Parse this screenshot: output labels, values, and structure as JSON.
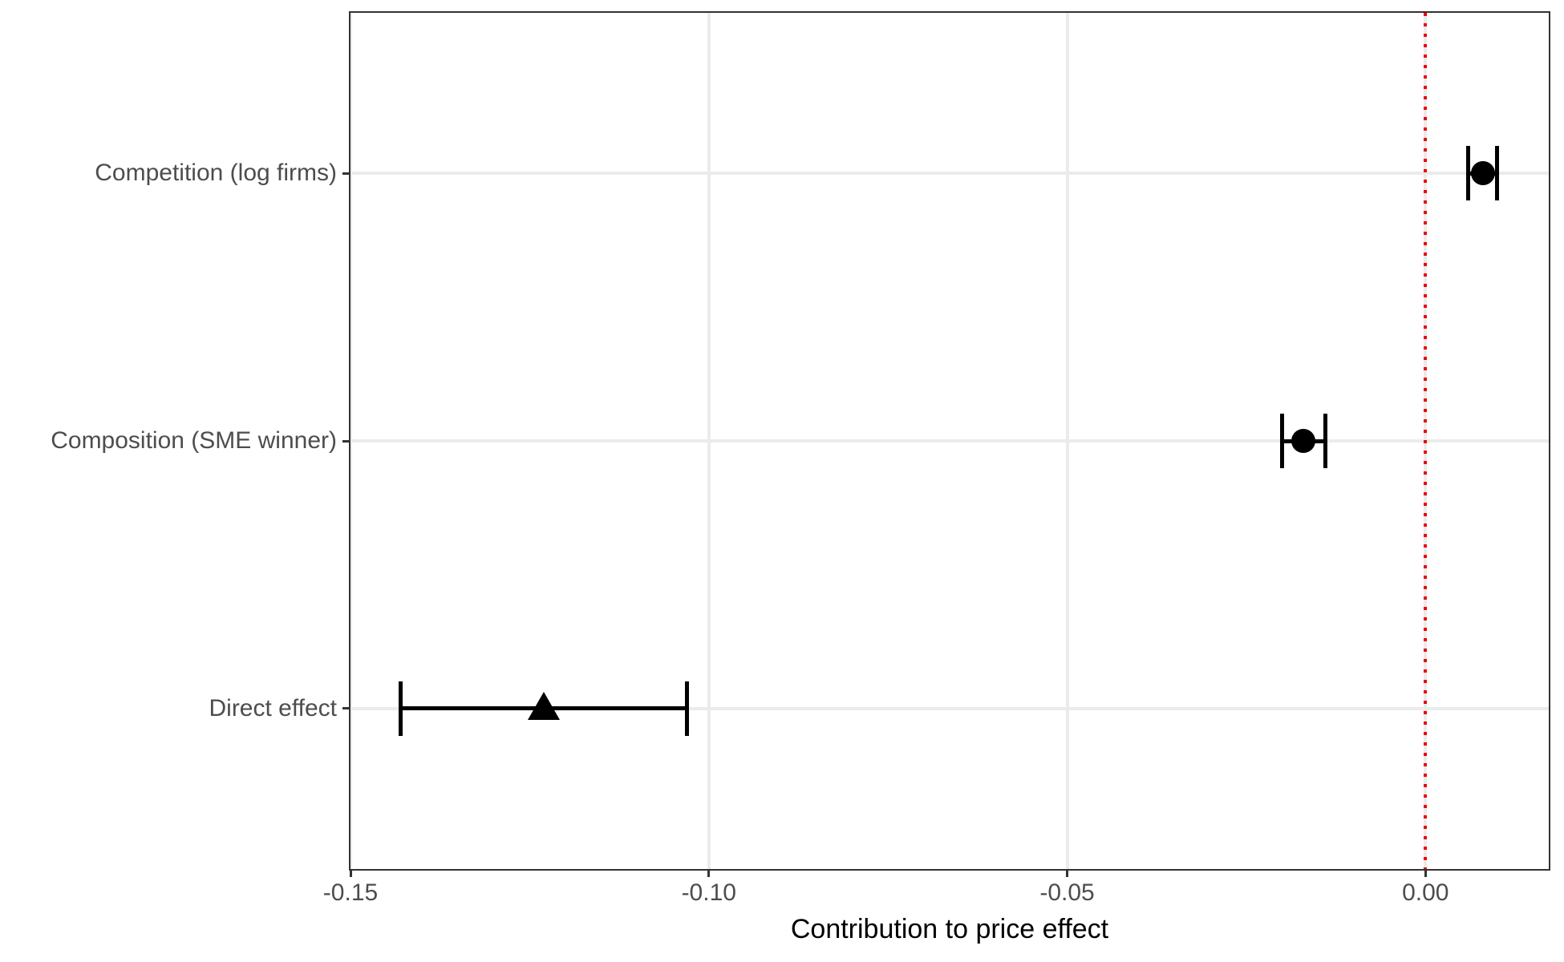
{
  "chart_data": {
    "type": "scatter",
    "subtype": "horizontal-coefficient-plot-with-error-bars",
    "title": "",
    "xlabel": "Contribution to price effect",
    "ylabel": "",
    "xlim": [
      -0.15,
      0.0172
    ],
    "x_ticks": [
      -0.15,
      -0.1,
      -0.05,
      0.0
    ],
    "x_tick_labels": [
      "-0.15",
      "-0.10",
      "-0.05",
      "0.00"
    ],
    "categories_top_to_bottom": [
      "Competition (log firms)",
      "Composition (SME winner)",
      "Direct effect"
    ],
    "series": [
      {
        "name": "Competition (log firms)",
        "x": 0.008,
        "ci_low": 0.006,
        "ci_high": 0.01,
        "marker": "circle"
      },
      {
        "name": "Composition (SME winner)",
        "x": -0.017,
        "ci_low": -0.02,
        "ci_high": -0.014,
        "marker": "circle"
      },
      {
        "name": "Direct effect",
        "x": -0.123,
        "ci_low": -0.143,
        "ci_high": -0.103,
        "marker": "triangle"
      }
    ],
    "reference_line": {
      "x": 0.0,
      "style": "dotted",
      "color": "#EE0000"
    },
    "grid": true,
    "legend": false,
    "colors": {
      "marker": "#000000",
      "error_bar": "#000000",
      "grid": "#EBEBEB",
      "tick_label": "#4D4D4D",
      "axis_title": "#000000",
      "panel_border": "#333333",
      "background": "#FFFFFF"
    }
  }
}
